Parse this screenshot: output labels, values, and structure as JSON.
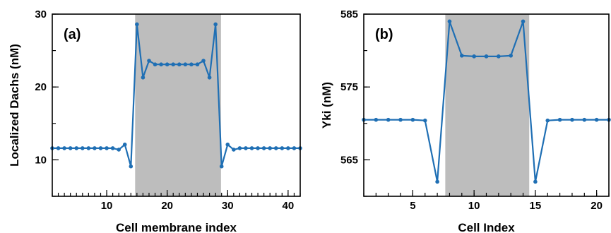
{
  "chart_data": [
    {
      "type": "line",
      "panel_label": "(a)",
      "xlabel": "Cell membrane index",
      "ylabel": "Localized Dachs (nM)",
      "xlim": [
        1,
        42
      ],
      "ylim": [
        5,
        30
      ],
      "xticks": [
        10,
        20,
        30,
        40
      ],
      "yticks": [
        10,
        20,
        30
      ],
      "shaded_region": [
        14.7,
        28.9
      ],
      "series_color": "#1f6fb4",
      "shade_color": "#bdbdbd",
      "grid": false,
      "x": [
        1,
        2,
        3,
        4,
        5,
        6,
        7,
        8,
        9,
        10,
        11,
        12,
        13,
        14,
        15,
        16,
        17,
        18,
        19,
        20,
        21,
        22,
        23,
        24,
        25,
        26,
        27,
        28,
        29,
        30,
        31,
        32,
        33,
        34,
        35,
        36,
        37,
        38,
        39,
        40,
        41,
        42
      ],
      "y": [
        11.6,
        11.6,
        11.6,
        11.6,
        11.6,
        11.6,
        11.6,
        11.6,
        11.6,
        11.6,
        11.6,
        11.4,
        12.1,
        9.1,
        28.6,
        21.3,
        23.6,
        23.1,
        23.1,
        23.1,
        23.1,
        23.1,
        23.1,
        23.1,
        23.1,
        23.6,
        21.3,
        28.6,
        9.1,
        12.1,
        11.4,
        11.6,
        11.6,
        11.6,
        11.6,
        11.6,
        11.6,
        11.6,
        11.6,
        11.6,
        11.6,
        11.6
      ]
    },
    {
      "type": "line",
      "panel_label": "(b)",
      "xlabel": "Cell Index",
      "ylabel": "Yki (nM)",
      "xlim": [
        1,
        21
      ],
      "ylim": [
        560,
        585
      ],
      "xticks": [
        5,
        10,
        15,
        20
      ],
      "yticks": [
        565,
        575,
        585
      ],
      "shaded_region": [
        7.65,
        14.5
      ],
      "series_color": "#1f6fb4",
      "shade_color": "#bdbdbd",
      "grid": false,
      "x": [
        1,
        2,
        3,
        4,
        5,
        6,
        7,
        8,
        9,
        10,
        11,
        12,
        13,
        14,
        15,
        16,
        17,
        18,
        19,
        20,
        21
      ],
      "y": [
        570.5,
        570.5,
        570.5,
        570.5,
        570.5,
        570.4,
        562.0,
        584.0,
        579.3,
        579.2,
        579.2,
        579.2,
        579.3,
        584.0,
        562.0,
        570.4,
        570.5,
        570.5,
        570.5,
        570.5,
        570.5
      ]
    }
  ]
}
